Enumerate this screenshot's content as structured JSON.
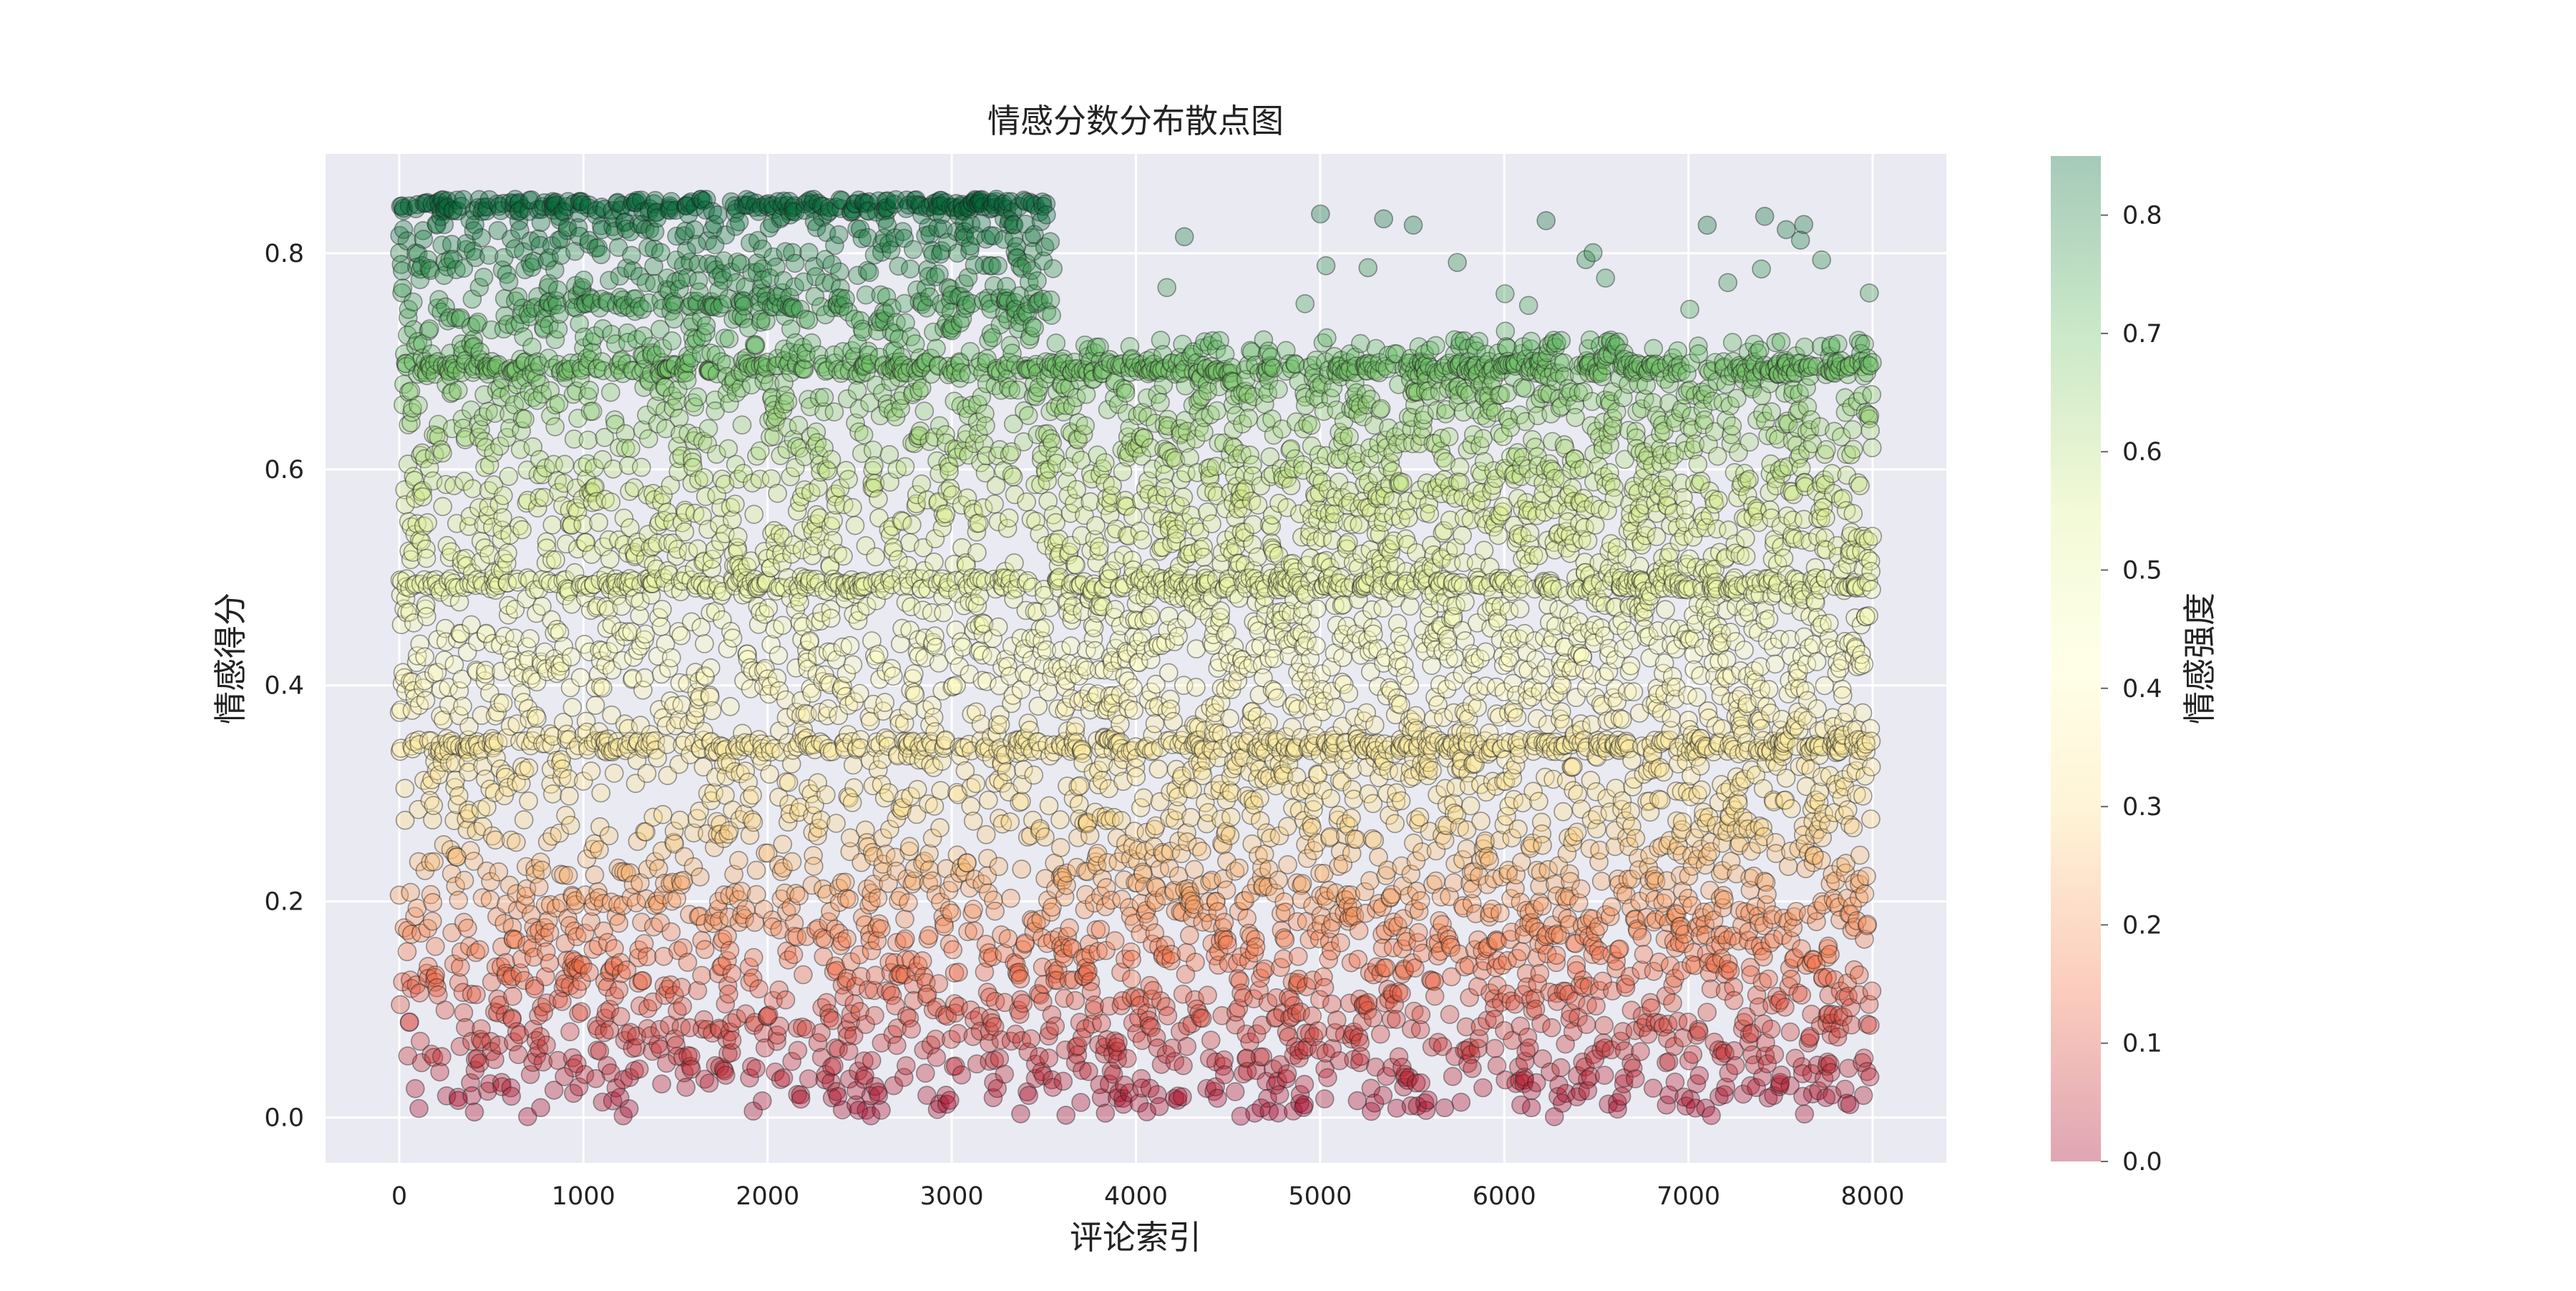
{
  "chart_data": {
    "type": "scatter",
    "title": "情感分数分布散点图",
    "xlabel": "评论索引",
    "ylabel": "情感得分",
    "xlim": [
      -400,
      8400
    ],
    "ylim": [
      -0.042,
      0.892
    ],
    "xticks": [
      "0",
      "1000",
      "2000",
      "3000",
      "4000",
      "5000",
      "6000",
      "7000",
      "8000"
    ],
    "yticks": [
      "0.0",
      "0.2",
      "0.4",
      "0.6",
      "0.8"
    ],
    "grid": true,
    "colorbar": {
      "label": "情感强度",
      "range": [
        0.0,
        0.85
      ],
      "ticks": [
        "0.0",
        "0.1",
        "0.2",
        "0.3",
        "0.4",
        "0.5",
        "0.6",
        "0.7",
        "0.8"
      ],
      "colormap": [
        "#a50026",
        "#f46d43",
        "#fee08b",
        "#ffffbf",
        "#d9ef8b",
        "#66bd63",
        "#006837"
      ]
    },
    "point_count": 8000,
    "score_bands": [
      {
        "score": 0.85,
        "density": "high",
        "x_range": [
          0,
          3500
        ]
      },
      {
        "score": 0.76,
        "density": "medium",
        "x_range": [
          600,
          3500
        ]
      },
      {
        "score": 0.7,
        "density": "high",
        "x_range": [
          0,
          8000
        ]
      },
      {
        "score": 0.5,
        "density": "high",
        "x_range": [
          0,
          8000
        ]
      },
      {
        "score": 0.35,
        "density": "high",
        "x_range": [
          0,
          8000
        ]
      }
    ]
  }
}
